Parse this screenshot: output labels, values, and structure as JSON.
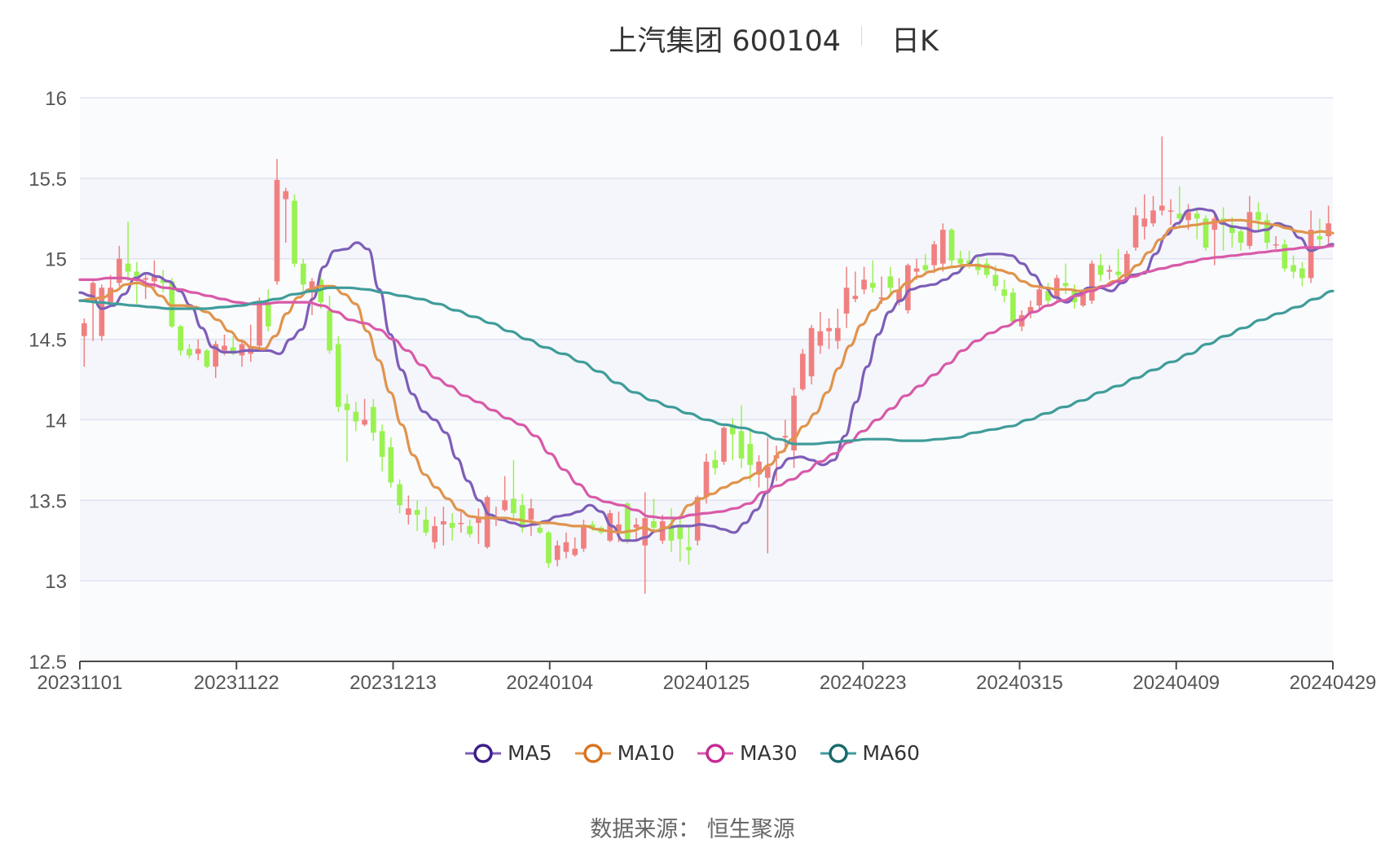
{
  "title": {
    "main": "上汽集团 600104",
    "sub": "日K"
  },
  "source": {
    "label": "数据来源：",
    "value": "恒生聚源"
  },
  "chart_data": {
    "type": "candlestick",
    "ylim": [
      12.5,
      16
    ],
    "yticks": [
      "12.5",
      "13",
      "13.5",
      "14",
      "14.5",
      "15",
      "15.5",
      "16"
    ],
    "xticks": [
      "20231101",
      "20231122",
      "20231213",
      "20240104",
      "20240125",
      "20240223",
      "20240315",
      "20240409",
      "20240429"
    ],
    "colors": {
      "up": "#f08080",
      "down": "#99f250",
      "MA5": "#7e5eb8",
      "MA10": "#e0944d",
      "MA30": "#d85aa8",
      "MA60": "#3f9c9a",
      "grid": "#dde3ef",
      "band": "#f4f6fb"
    },
    "candles": [
      [
        14.52,
        14.6,
        14.63,
        14.33
      ],
      [
        14.74,
        14.85,
        14.86,
        14.49
      ],
      [
        14.52,
        14.82,
        14.84,
        14.49
      ],
      [
        14.73,
        14.82,
        14.9,
        14.72
      ],
      [
        14.85,
        15.0,
        15.08,
        14.83
      ],
      [
        14.97,
        14.92,
        15.23,
        14.86
      ],
      [
        14.92,
        14.88,
        14.98,
        14.72
      ],
      [
        14.87,
        14.88,
        14.91,
        14.75
      ],
      [
        14.86,
        14.89,
        14.99,
        14.82
      ],
      [
        14.87,
        14.85,
        14.93,
        14.79
      ],
      [
        14.86,
        14.58,
        14.88,
        14.57
      ],
      [
        14.58,
        14.43,
        14.59,
        14.4
      ],
      [
        14.44,
        14.4,
        14.47,
        14.38
      ],
      [
        14.41,
        14.44,
        14.5,
        14.37
      ],
      [
        14.43,
        14.33,
        14.44,
        14.32
      ],
      [
        14.33,
        14.47,
        14.49,
        14.26
      ],
      [
        14.43,
        14.46,
        14.53,
        14.4
      ],
      [
        14.45,
        14.41,
        14.52,
        14.4
      ],
      [
        14.4,
        14.47,
        14.5,
        14.33
      ],
      [
        14.41,
        14.45,
        14.59,
        14.36
      ],
      [
        14.46,
        14.74,
        14.76,
        14.43
      ],
      [
        14.73,
        14.58,
        14.81,
        14.55
      ],
      [
        14.86,
        15.49,
        15.62,
        14.84
      ],
      [
        15.37,
        15.42,
        15.44,
        15.1
      ],
      [
        15.36,
        14.97,
        15.4,
        14.95
      ],
      [
        14.97,
        14.84,
        15.0,
        14.8
      ],
      [
        14.79,
        14.86,
        14.88,
        14.65
      ],
      [
        14.87,
        14.73,
        14.91,
        14.69
      ],
      [
        14.68,
        14.43,
        14.77,
        14.41
      ],
      [
        14.47,
        14.08,
        14.52,
        14.05
      ],
      [
        14.1,
        14.06,
        14.16,
        13.74
      ],
      [
        14.05,
        13.99,
        14.11,
        13.93
      ],
      [
        13.97,
        14.0,
        14.13,
        13.96
      ],
      [
        14.08,
        13.92,
        14.13,
        13.87
      ],
      [
        13.93,
        13.77,
        13.97,
        13.68
      ],
      [
        13.83,
        13.61,
        13.89,
        13.58
      ],
      [
        13.6,
        13.47,
        13.63,
        13.42
      ],
      [
        13.41,
        13.45,
        13.53,
        13.35
      ],
      [
        13.44,
        13.41,
        13.5,
        13.31
      ],
      [
        13.38,
        13.3,
        13.46,
        13.28
      ],
      [
        13.24,
        13.34,
        13.4,
        13.2
      ],
      [
        13.35,
        13.37,
        13.46,
        13.22
      ],
      [
        13.36,
        13.33,
        13.42,
        13.25
      ],
      [
        13.36,
        13.36,
        13.44,
        13.3
      ],
      [
        13.34,
        13.29,
        13.38,
        13.27
      ],
      [
        13.36,
        13.39,
        13.45,
        13.23
      ],
      [
        13.21,
        13.52,
        13.53,
        13.2
      ],
      [
        13.38,
        13.4,
        13.46,
        13.34
      ],
      [
        13.44,
        13.5,
        13.65,
        13.43
      ],
      [
        13.51,
        13.42,
        13.75,
        13.39
      ],
      [
        13.47,
        13.33,
        13.54,
        13.3
      ],
      [
        13.38,
        13.45,
        13.51,
        13.28
      ],
      [
        13.33,
        13.3,
        13.36,
        13.29
      ],
      [
        13.3,
        13.11,
        13.31,
        13.08
      ],
      [
        13.13,
        13.22,
        13.25,
        13.09
      ],
      [
        13.18,
        13.24,
        13.3,
        13.14
      ],
      [
        13.16,
        13.2,
        13.27,
        13.15
      ],
      [
        13.2,
        13.34,
        13.38,
        13.18
      ],
      [
        13.35,
        13.33,
        13.37,
        13.31
      ],
      [
        13.33,
        13.3,
        13.34,
        13.29
      ],
      [
        13.25,
        13.42,
        13.44,
        13.24
      ],
      [
        13.31,
        13.35,
        13.43,
        13.24
      ],
      [
        13.48,
        13.25,
        13.49,
        13.23
      ],
      [
        13.33,
        13.35,
        13.39,
        13.25
      ],
      [
        13.22,
        13.39,
        13.55,
        12.92
      ],
      [
        13.37,
        13.33,
        13.51,
        13.3
      ],
      [
        13.25,
        13.37,
        13.41,
        13.23
      ],
      [
        13.35,
        13.25,
        13.45,
        13.18
      ],
      [
        13.35,
        13.26,
        13.39,
        13.12
      ],
      [
        13.21,
        13.19,
        13.34,
        13.1
      ],
      [
        13.25,
        13.52,
        13.53,
        13.22
      ],
      [
        13.52,
        13.74,
        13.79,
        13.48
      ],
      [
        13.75,
        13.7,
        13.81,
        13.66
      ],
      [
        13.74,
        13.95,
        13.96,
        13.72
      ],
      [
        13.97,
        13.91,
        14.01,
        13.75
      ],
      [
        13.93,
        13.76,
        14.09,
        13.7
      ],
      [
        13.85,
        13.72,
        13.95,
        13.62
      ],
      [
        13.66,
        13.74,
        13.78,
        13.58
      ],
      [
        13.64,
        13.71,
        13.89,
        13.17
      ],
      [
        13.76,
        13.78,
        13.84,
        13.62
      ],
      [
        13.89,
        13.9,
        14.0,
        13.8
      ],
      [
        13.81,
        14.15,
        14.2,
        13.7
      ],
      [
        14.19,
        14.41,
        14.44,
        14.18
      ],
      [
        14.27,
        14.57,
        14.59,
        14.22
      ],
      [
        14.46,
        14.55,
        14.67,
        14.41
      ],
      [
        14.55,
        14.57,
        14.63,
        14.44
      ],
      [
        14.49,
        14.57,
        14.69,
        14.44
      ],
      [
        14.66,
        14.82,
        14.95,
        14.57
      ],
      [
        14.75,
        14.77,
        14.92,
        14.73
      ],
      [
        14.81,
        14.87,
        14.95,
        14.78
      ],
      [
        14.85,
        14.82,
        14.99,
        14.79
      ],
      [
        14.75,
        14.76,
        14.89,
        14.72
      ],
      [
        14.89,
        14.82,
        14.95,
        14.78
      ],
      [
        14.73,
        14.81,
        14.88,
        14.71
      ],
      [
        14.68,
        14.96,
        14.97,
        14.66
      ],
      [
        14.92,
        14.94,
        15.0,
        14.87
      ],
      [
        14.96,
        14.93,
        15.03,
        14.9
      ],
      [
        14.96,
        15.09,
        15.11,
        14.91
      ],
      [
        14.97,
        15.18,
        15.22,
        14.92
      ],
      [
        15.18,
        14.99,
        15.19,
        14.95
      ],
      [
        15.0,
        14.97,
        15.05,
        14.93
      ],
      [
        14.99,
        14.97,
        15.05,
        14.94
      ],
      [
        14.97,
        14.93,
        15.02,
        14.9
      ],
      [
        14.97,
        14.9,
        15.0,
        14.88
      ],
      [
        14.9,
        14.83,
        14.96,
        14.8
      ],
      [
        14.81,
        14.77,
        14.87,
        14.73
      ],
      [
        14.79,
        14.61,
        14.82,
        14.59
      ],
      [
        14.58,
        14.65,
        14.68,
        14.55
      ],
      [
        14.66,
        14.7,
        14.74,
        14.63
      ],
      [
        14.71,
        14.81,
        14.84,
        14.68
      ],
      [
        14.8,
        14.74,
        14.85,
        14.7
      ],
      [
        14.76,
        14.88,
        14.9,
        14.74
      ],
      [
        14.85,
        14.83,
        14.97,
        14.78
      ],
      [
        14.81,
        14.73,
        14.84,
        14.69
      ],
      [
        14.71,
        14.78,
        14.8,
        14.7
      ],
      [
        14.74,
        14.97,
        14.99,
        14.72
      ],
      [
        14.96,
        14.9,
        15.03,
        14.86
      ],
      [
        14.92,
        14.93,
        14.96,
        14.87
      ],
      [
        14.92,
        14.9,
        15.06,
        14.88
      ],
      [
        14.88,
        15.03,
        15.05,
        14.86
      ],
      [
        15.07,
        15.27,
        15.32,
        15.05
      ],
      [
        15.2,
        15.25,
        15.4,
        15.12
      ],
      [
        15.22,
        15.3,
        15.39,
        15.2
      ],
      [
        15.3,
        15.33,
        15.76,
        15.27
      ],
      [
        15.3,
        15.3,
        15.37,
        15.21
      ],
      [
        15.28,
        15.25,
        15.45,
        15.2
      ],
      [
        15.24,
        15.29,
        15.34,
        15.18
      ],
      [
        15.28,
        15.25,
        15.32,
        15.12
      ],
      [
        15.25,
        15.07,
        15.27,
        15.05
      ],
      [
        15.18,
        15.25,
        15.28,
        14.96
      ],
      [
        15.25,
        15.21,
        15.32,
        15.05
      ],
      [
        15.2,
        15.16,
        15.26,
        15.07
      ],
      [
        15.17,
        15.1,
        15.18,
        15.05
      ],
      [
        15.08,
        15.29,
        15.39,
        15.06
      ],
      [
        15.29,
        15.24,
        15.35,
        15.18
      ],
      [
        15.24,
        15.1,
        15.28,
        15.06
      ],
      [
        15.09,
        15.09,
        15.14,
        15.06
      ],
      [
        15.09,
        14.94,
        15.12,
        14.92
      ],
      [
        14.96,
        14.92,
        15.02,
        14.88
      ],
      [
        14.94,
        14.88,
        14.98,
        14.83
      ],
      [
        14.88,
        15.18,
        15.3,
        14.85
      ],
      [
        15.14,
        15.12,
        15.25,
        15.07
      ],
      [
        15.14,
        15.22,
        15.33,
        15.09
      ]
    ],
    "series": [
      {
        "name": "MA5",
        "values": [
          14.79,
          14.77,
          14.69,
          14.71,
          14.78,
          14.88,
          14.91,
          14.89,
          14.86,
          14.8,
          14.71,
          14.57,
          14.45,
          14.42,
          14.42,
          14.43,
          14.43,
          14.43,
          14.41,
          14.5,
          14.56,
          14.75,
          14.95,
          15.05,
          15.06,
          15.1,
          15.06,
          14.81,
          14.53,
          14.31,
          14.16,
          14.05,
          14.0,
          13.92,
          13.76,
          13.62,
          13.5,
          13.41,
          13.38,
          13.36,
          13.34,
          13.35,
          13.37,
          13.4,
          13.41,
          13.43,
          13.47,
          13.43,
          13.34,
          13.25,
          13.25,
          13.27,
          13.31,
          13.33,
          13.34,
          13.34,
          13.35,
          13.34,
          13.32,
          13.3,
          13.36,
          13.44,
          13.55,
          13.7,
          13.76,
          13.77,
          13.75,
          13.72,
          13.75,
          13.9,
          14.11,
          14.33,
          14.53,
          14.67,
          14.74,
          14.81,
          14.83,
          14.84,
          14.87,
          14.91,
          14.96,
          15.02,
          15.03,
          15.03,
          15.02,
          14.97,
          14.9,
          14.82,
          14.76,
          14.73,
          14.78,
          14.82,
          14.82,
          14.8,
          14.85,
          14.9,
          14.91,
          15.03,
          15.15,
          15.22,
          15.3,
          15.31,
          15.3,
          15.22,
          15.2,
          15.19,
          15.17,
          15.18,
          15.22,
          15.2,
          15.13,
          15.05,
          15.07,
          15.09
        ]
      },
      {
        "name": "MA10",
        "values": [
          14.74,
          14.75,
          14.76,
          14.8,
          14.84,
          14.85,
          14.83,
          14.77,
          14.71,
          14.71,
          14.7,
          14.67,
          14.62,
          14.55,
          14.49,
          14.45,
          14.44,
          14.52,
          14.66,
          14.76,
          14.81,
          14.83,
          14.83,
          14.78,
          14.72,
          14.55,
          14.37,
          14.17,
          13.97,
          13.78,
          13.66,
          13.58,
          13.51,
          13.44,
          13.4,
          13.39,
          13.39,
          13.39,
          13.38,
          13.37,
          13.36,
          13.36,
          13.35,
          13.34,
          13.34,
          13.32,
          13.31,
          13.3,
          13.31,
          13.33,
          13.31,
          13.33,
          13.39,
          13.47,
          13.51,
          13.54,
          13.58,
          13.61,
          13.64,
          13.67,
          13.72,
          13.8,
          13.88,
          13.96,
          14.04,
          14.17,
          14.32,
          14.46,
          14.59,
          14.68,
          14.75,
          14.8,
          14.85,
          14.89,
          14.92,
          14.94,
          14.95,
          14.96,
          14.96,
          14.95,
          14.93,
          14.91,
          14.86,
          14.83,
          14.82,
          14.81,
          14.81,
          14.8,
          14.81,
          14.83,
          14.86,
          14.9,
          14.96,
          15.04,
          15.12,
          15.19,
          15.2,
          15.21,
          15.22,
          15.23,
          15.24,
          15.24,
          15.23,
          15.22,
          15.21,
          15.19,
          15.17,
          15.16,
          15.17,
          15.16
        ]
      },
      {
        "name": "MA30",
        "values": [
          14.87,
          14.87,
          14.88,
          14.88,
          14.87,
          14.84,
          14.82,
          14.81,
          14.79,
          14.77,
          14.75,
          14.73,
          14.72,
          14.72,
          14.73,
          14.73,
          14.73,
          14.71,
          14.67,
          14.62,
          14.6,
          14.56,
          14.5,
          14.43,
          14.34,
          14.26,
          14.21,
          14.15,
          14.11,
          14.06,
          14.01,
          13.97,
          13.9,
          13.79,
          13.69,
          13.6,
          13.52,
          13.49,
          13.47,
          13.44,
          13.4,
          13.39,
          13.39,
          13.41,
          13.42,
          13.43,
          13.45,
          13.48,
          13.55,
          13.59,
          13.63,
          13.68,
          13.74,
          13.79,
          13.86,
          13.93,
          14.0,
          14.07,
          14.15,
          14.21,
          14.28,
          14.35,
          14.43,
          14.49,
          14.54,
          14.58,
          14.62,
          14.67,
          14.71,
          14.74,
          14.77,
          14.8,
          14.83,
          14.86,
          14.89,
          14.92,
          14.94,
          14.96,
          14.98,
          15.0,
          15.01,
          15.02,
          15.03,
          15.04,
          15.05,
          15.06,
          15.07,
          15.07,
          15.08
        ]
      },
      {
        "name": "MA60",
        "values": [
          14.74,
          14.73,
          14.72,
          14.71,
          14.7,
          14.69,
          14.69,
          14.69,
          14.7,
          14.71,
          14.73,
          14.75,
          14.78,
          14.8,
          14.82,
          14.82,
          14.81,
          14.79,
          14.77,
          14.75,
          14.72,
          14.68,
          14.64,
          14.6,
          14.55,
          14.5,
          14.45,
          14.41,
          14.36,
          14.3,
          14.23,
          14.17,
          14.12,
          14.08,
          14.04,
          14.0,
          13.97,
          13.95,
          13.92,
          13.88,
          13.85,
          13.85,
          13.86,
          13.87,
          13.88,
          13.88,
          13.87,
          13.87,
          13.88,
          13.89,
          13.92,
          13.94,
          13.96,
          14.0,
          14.04,
          14.08,
          14.12,
          14.17,
          14.21,
          14.26,
          14.31,
          14.36,
          14.41,
          14.47,
          14.52,
          14.57,
          14.62,
          14.66,
          14.7,
          14.75,
          14.8
        ]
      }
    ]
  }
}
